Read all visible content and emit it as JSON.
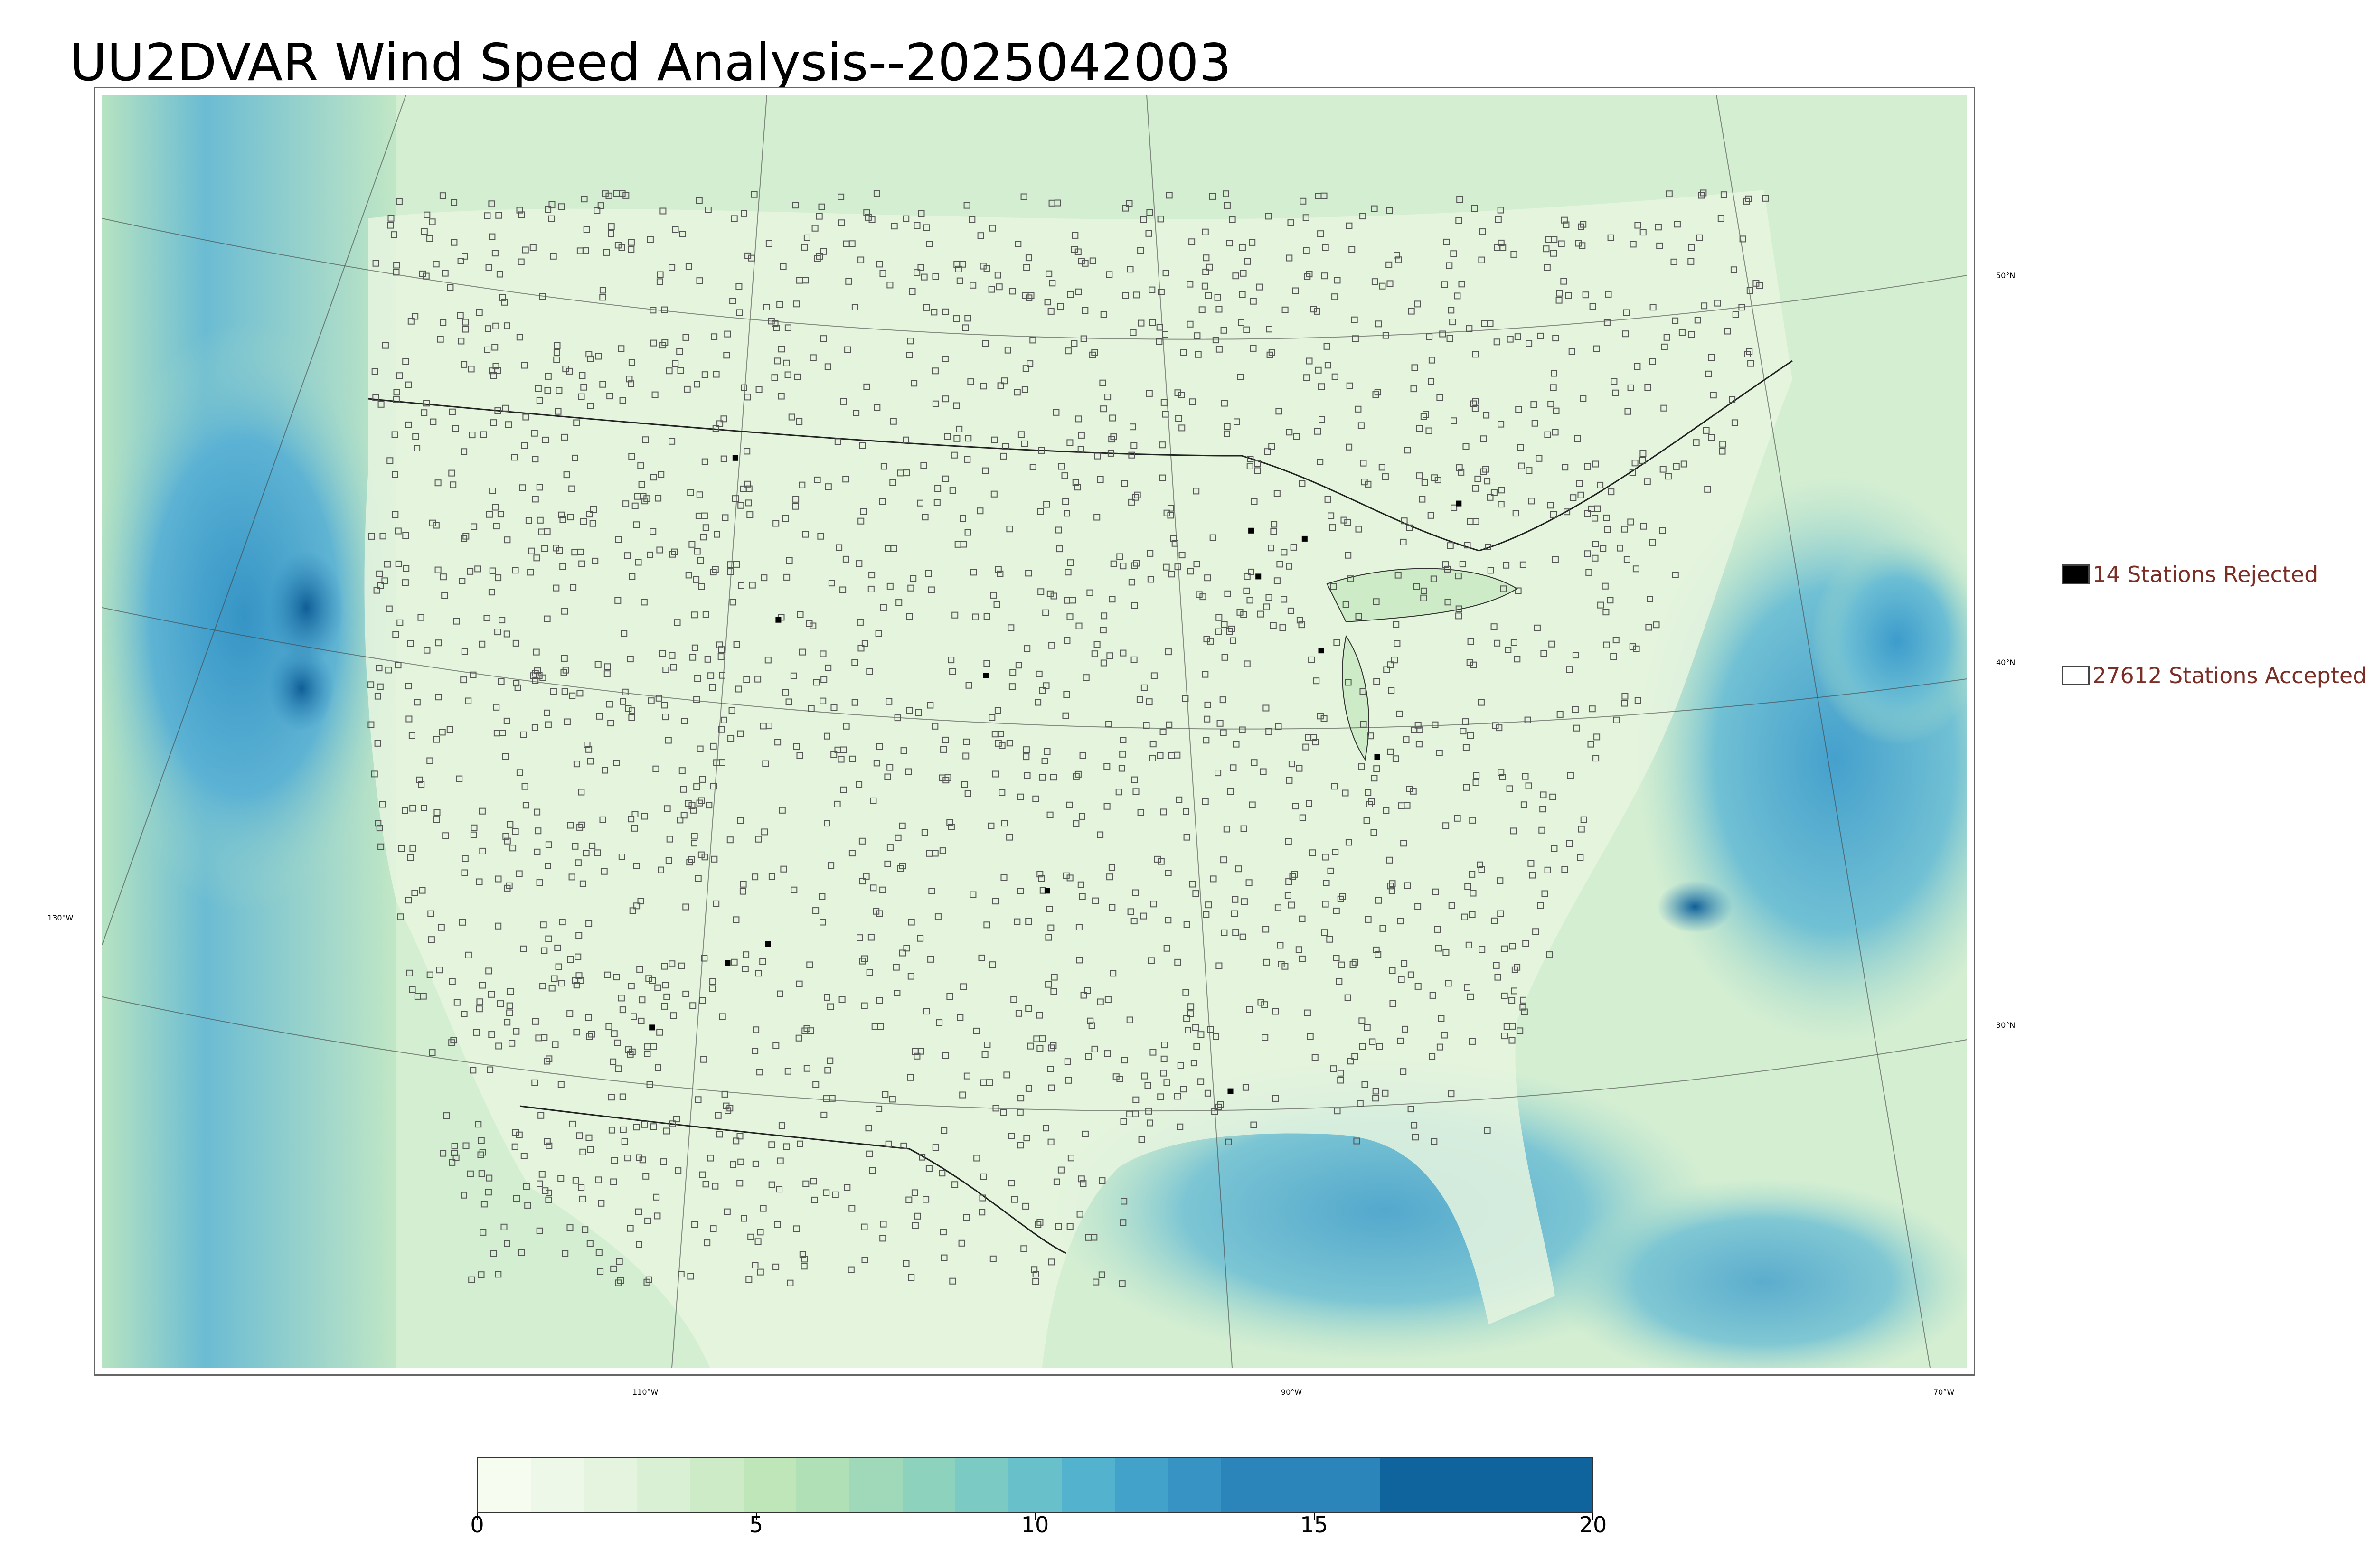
{
  "title": "UU2DVAR Wind Speed Analysis--2025042003",
  "map": {
    "projection": "Lambert conformal",
    "variable": "wind speed",
    "colormap": "GnBu",
    "background_color": "#d9efd4",
    "ocean_color": "#5fb3d6",
    "land_color": "#e3f3dc",
    "longitude_labels": [
      "110°W",
      "90°W",
      "70°W",
      "130°W"
    ],
    "latitude_labels": [
      "50°N",
      "40°N",
      "30°N"
    ]
  },
  "legend": {
    "rejected": {
      "count_label": "14 Stations Rejected",
      "swatch_color": "#000000"
    },
    "accepted": {
      "count_label": "27612 Stations Accepted",
      "swatch_color": "#ffffff"
    }
  },
  "colorbar": {
    "min": 0,
    "max": 20,
    "tick_labels": [
      "0",
      "5",
      "10",
      "15",
      "20"
    ],
    "colors": [
      "#f7fcf0",
      "#eef8e9",
      "#e4f4df",
      "#daf0d4",
      "#cdebc6",
      "#bfe6b9",
      "#b0e0b5",
      "#9fd9b9",
      "#8dd2bd",
      "#7bcbc4",
      "#67c0ca",
      "#53b3cf",
      "#43a2ca",
      "#3693c3",
      "#2b85bb",
      "#2b85bb",
      "#2b85bb",
      "#0f649e",
      "#0f649e",
      "#0f649e",
      "#0f649e"
    ]
  },
  "station_markers": {
    "accepted_marker": "square-outline",
    "rejected_marker": "square-filled"
  }
}
